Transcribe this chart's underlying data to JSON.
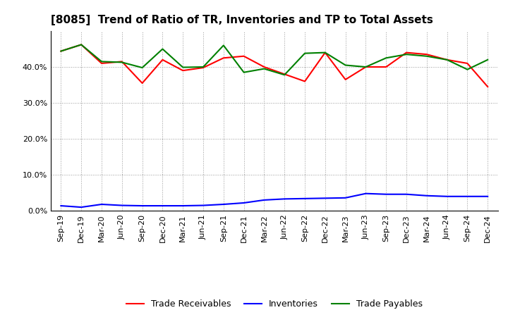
{
  "title": "[8085]  Trend of Ratio of TR, Inventories and TP to Total Assets",
  "labels": [
    "Sep-19",
    "Dec-19",
    "Mar-20",
    "Jun-20",
    "Sep-20",
    "Dec-20",
    "Mar-21",
    "Jun-21",
    "Sep-21",
    "Dec-21",
    "Mar-22",
    "Jun-22",
    "Sep-22",
    "Dec-22",
    "Mar-23",
    "Jun-23",
    "Sep-23",
    "Dec-23",
    "Mar-24",
    "Jun-24",
    "Sep-24",
    "Dec-24"
  ],
  "trade_receivables": [
    0.444,
    0.462,
    0.41,
    0.415,
    0.355,
    0.42,
    0.39,
    0.398,
    0.425,
    0.43,
    0.4,
    0.38,
    0.36,
    0.44,
    0.365,
    0.4,
    0.4,
    0.44,
    0.435,
    0.42,
    0.41,
    0.345
  ],
  "inventories": [
    0.014,
    0.01,
    0.018,
    0.015,
    0.014,
    0.014,
    0.014,
    0.015,
    0.018,
    0.022,
    0.03,
    0.033,
    0.034,
    0.035,
    0.036,
    0.048,
    0.046,
    0.046,
    0.042,
    0.04,
    0.04,
    0.04
  ],
  "trade_payables": [
    0.444,
    0.462,
    0.415,
    0.413,
    0.398,
    0.45,
    0.399,
    0.4,
    0.46,
    0.385,
    0.395,
    0.378,
    0.438,
    0.44,
    0.405,
    0.4,
    0.425,
    0.435,
    0.43,
    0.42,
    0.393,
    0.42
  ],
  "tr_color": "#ff0000",
  "inv_color": "#0000ff",
  "tp_color": "#008000",
  "background_color": "#ffffff",
  "grid_color": "#999999",
  "ylim": [
    0.0,
    0.5
  ],
  "yticks": [
    0.0,
    0.1,
    0.2,
    0.3,
    0.4
  ],
  "legend_labels": [
    "Trade Receivables",
    "Inventories",
    "Trade Payables"
  ]
}
